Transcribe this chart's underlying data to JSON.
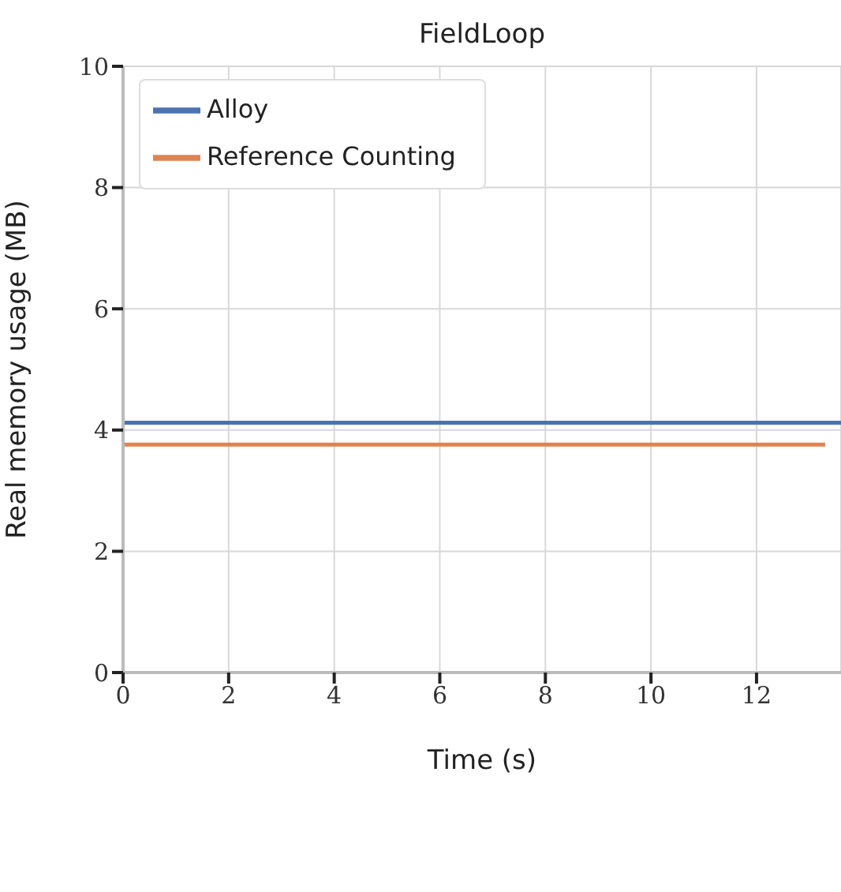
{
  "chart_data": {
    "type": "line",
    "title": "FieldLoop",
    "xlabel": "Time (s)",
    "ylabel": "Real memory usage (MB)",
    "xlim": [
      0,
      13.6
    ],
    "xticks": [
      0,
      2,
      4,
      6,
      8,
      10,
      12
    ],
    "ylim": [
      0,
      10
    ],
    "yticks": [
      0,
      2,
      4,
      6,
      8,
      10
    ],
    "grid": true,
    "legend": "top left",
    "marker": "none",
    "line_style": "solid",
    "series": [
      {
        "name": "Alloy",
        "color": "#4c72b0",
        "x": [
          0,
          13.6
        ],
        "values": [
          4.12,
          4.12
        ]
      },
      {
        "name": "Reference Counting",
        "color": "#dd8452",
        "x": [
          0,
          13.3
        ],
        "values": [
          3.76,
          3.76
        ]
      }
    ]
  }
}
